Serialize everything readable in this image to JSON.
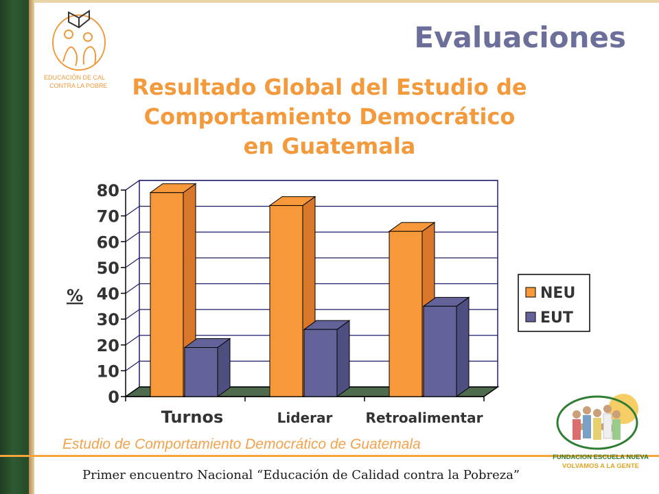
{
  "page": {
    "heading": "Evaluaciones",
    "logo_left_line1": "EDUCACIÓN DE CAL",
    "logo_left_line2": "CONTRA LA POBRE",
    "source_note": "Estudio de Comportamiento Democrático de Guatemala",
    "footer": "Primer encuentro Nacional “Educación de Calidad contra la Pobreza”",
    "logo_right_line1": "FUNDACION ESCUELA NUEVA",
    "logo_right_line2": "VOLVAMOS A LA GENTE"
  },
  "colors": {
    "neu": "#f7983a",
    "eut": "#636399",
    "title": "#f39a3c",
    "heading": "#6c6f9a",
    "floor": "#4e6b4e",
    "grid": "#1c1c6b",
    "logo_green": "#2f7d32",
    "logo_gold": "#e0a323"
  },
  "chart_data": {
    "type": "bar",
    "title_lines": [
      "Resultado Global del Estudio de",
      "Comportamiento Democrático",
      "en Guatemala"
    ],
    "categories": [
      "Turnos",
      "Liderar",
      "Retroalimentar"
    ],
    "series": [
      {
        "name": "NEU",
        "values": [
          79,
          74,
          64
        ]
      },
      {
        "name": "EUT",
        "values": [
          19,
          26,
          35
        ]
      }
    ],
    "ylabel": "%",
    "ylim": [
      0,
      80
    ],
    "yticks": [
      "0",
      "10",
      "20",
      "30",
      "40",
      "50",
      "60",
      "70",
      "80"
    ],
    "grid": true,
    "legend": "right",
    "style": "3d"
  }
}
